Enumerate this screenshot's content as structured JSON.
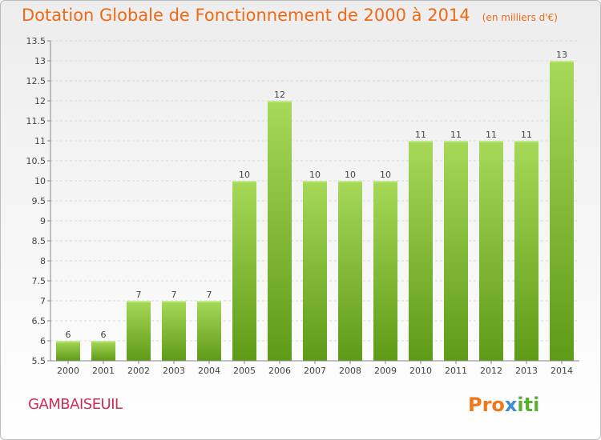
{
  "header": {
    "title": "Dotation Globale de Fonctionnement de 2000 à 2014",
    "unit": "(en milliers d'€)"
  },
  "footer": {
    "commune": "GAMBAISEUIL",
    "logo": "Proxiti"
  },
  "colors": {
    "bar_top": "#a6d957",
    "bar_bottom": "#5e9b16",
    "title": "#ee6a17",
    "commune": "#cc2f55"
  },
  "chart_data": {
    "type": "bar",
    "title": "Dotation Globale de Fonctionnement de 2000 à 2014",
    "subtitle": "(en milliers d'€)",
    "categories": [
      "2000",
      "2001",
      "2002",
      "2003",
      "2004",
      "2005",
      "2006",
      "2007",
      "2008",
      "2009",
      "2010",
      "2011",
      "2012",
      "2013",
      "2014"
    ],
    "values": [
      6,
      6,
      7,
      7,
      7,
      10,
      12,
      10,
      10,
      10,
      11,
      11,
      11,
      11,
      13
    ],
    "ylim": [
      5.5,
      13.5
    ],
    "yticks": [
      "5.5",
      "6",
      "6.5",
      "7",
      "7.5",
      "8",
      "8.5",
      "9",
      "9.5",
      "10",
      "10.5",
      "11",
      "11.5",
      "12",
      "12.5",
      "13",
      "13.5"
    ],
    "grid": true,
    "legend": "none"
  }
}
